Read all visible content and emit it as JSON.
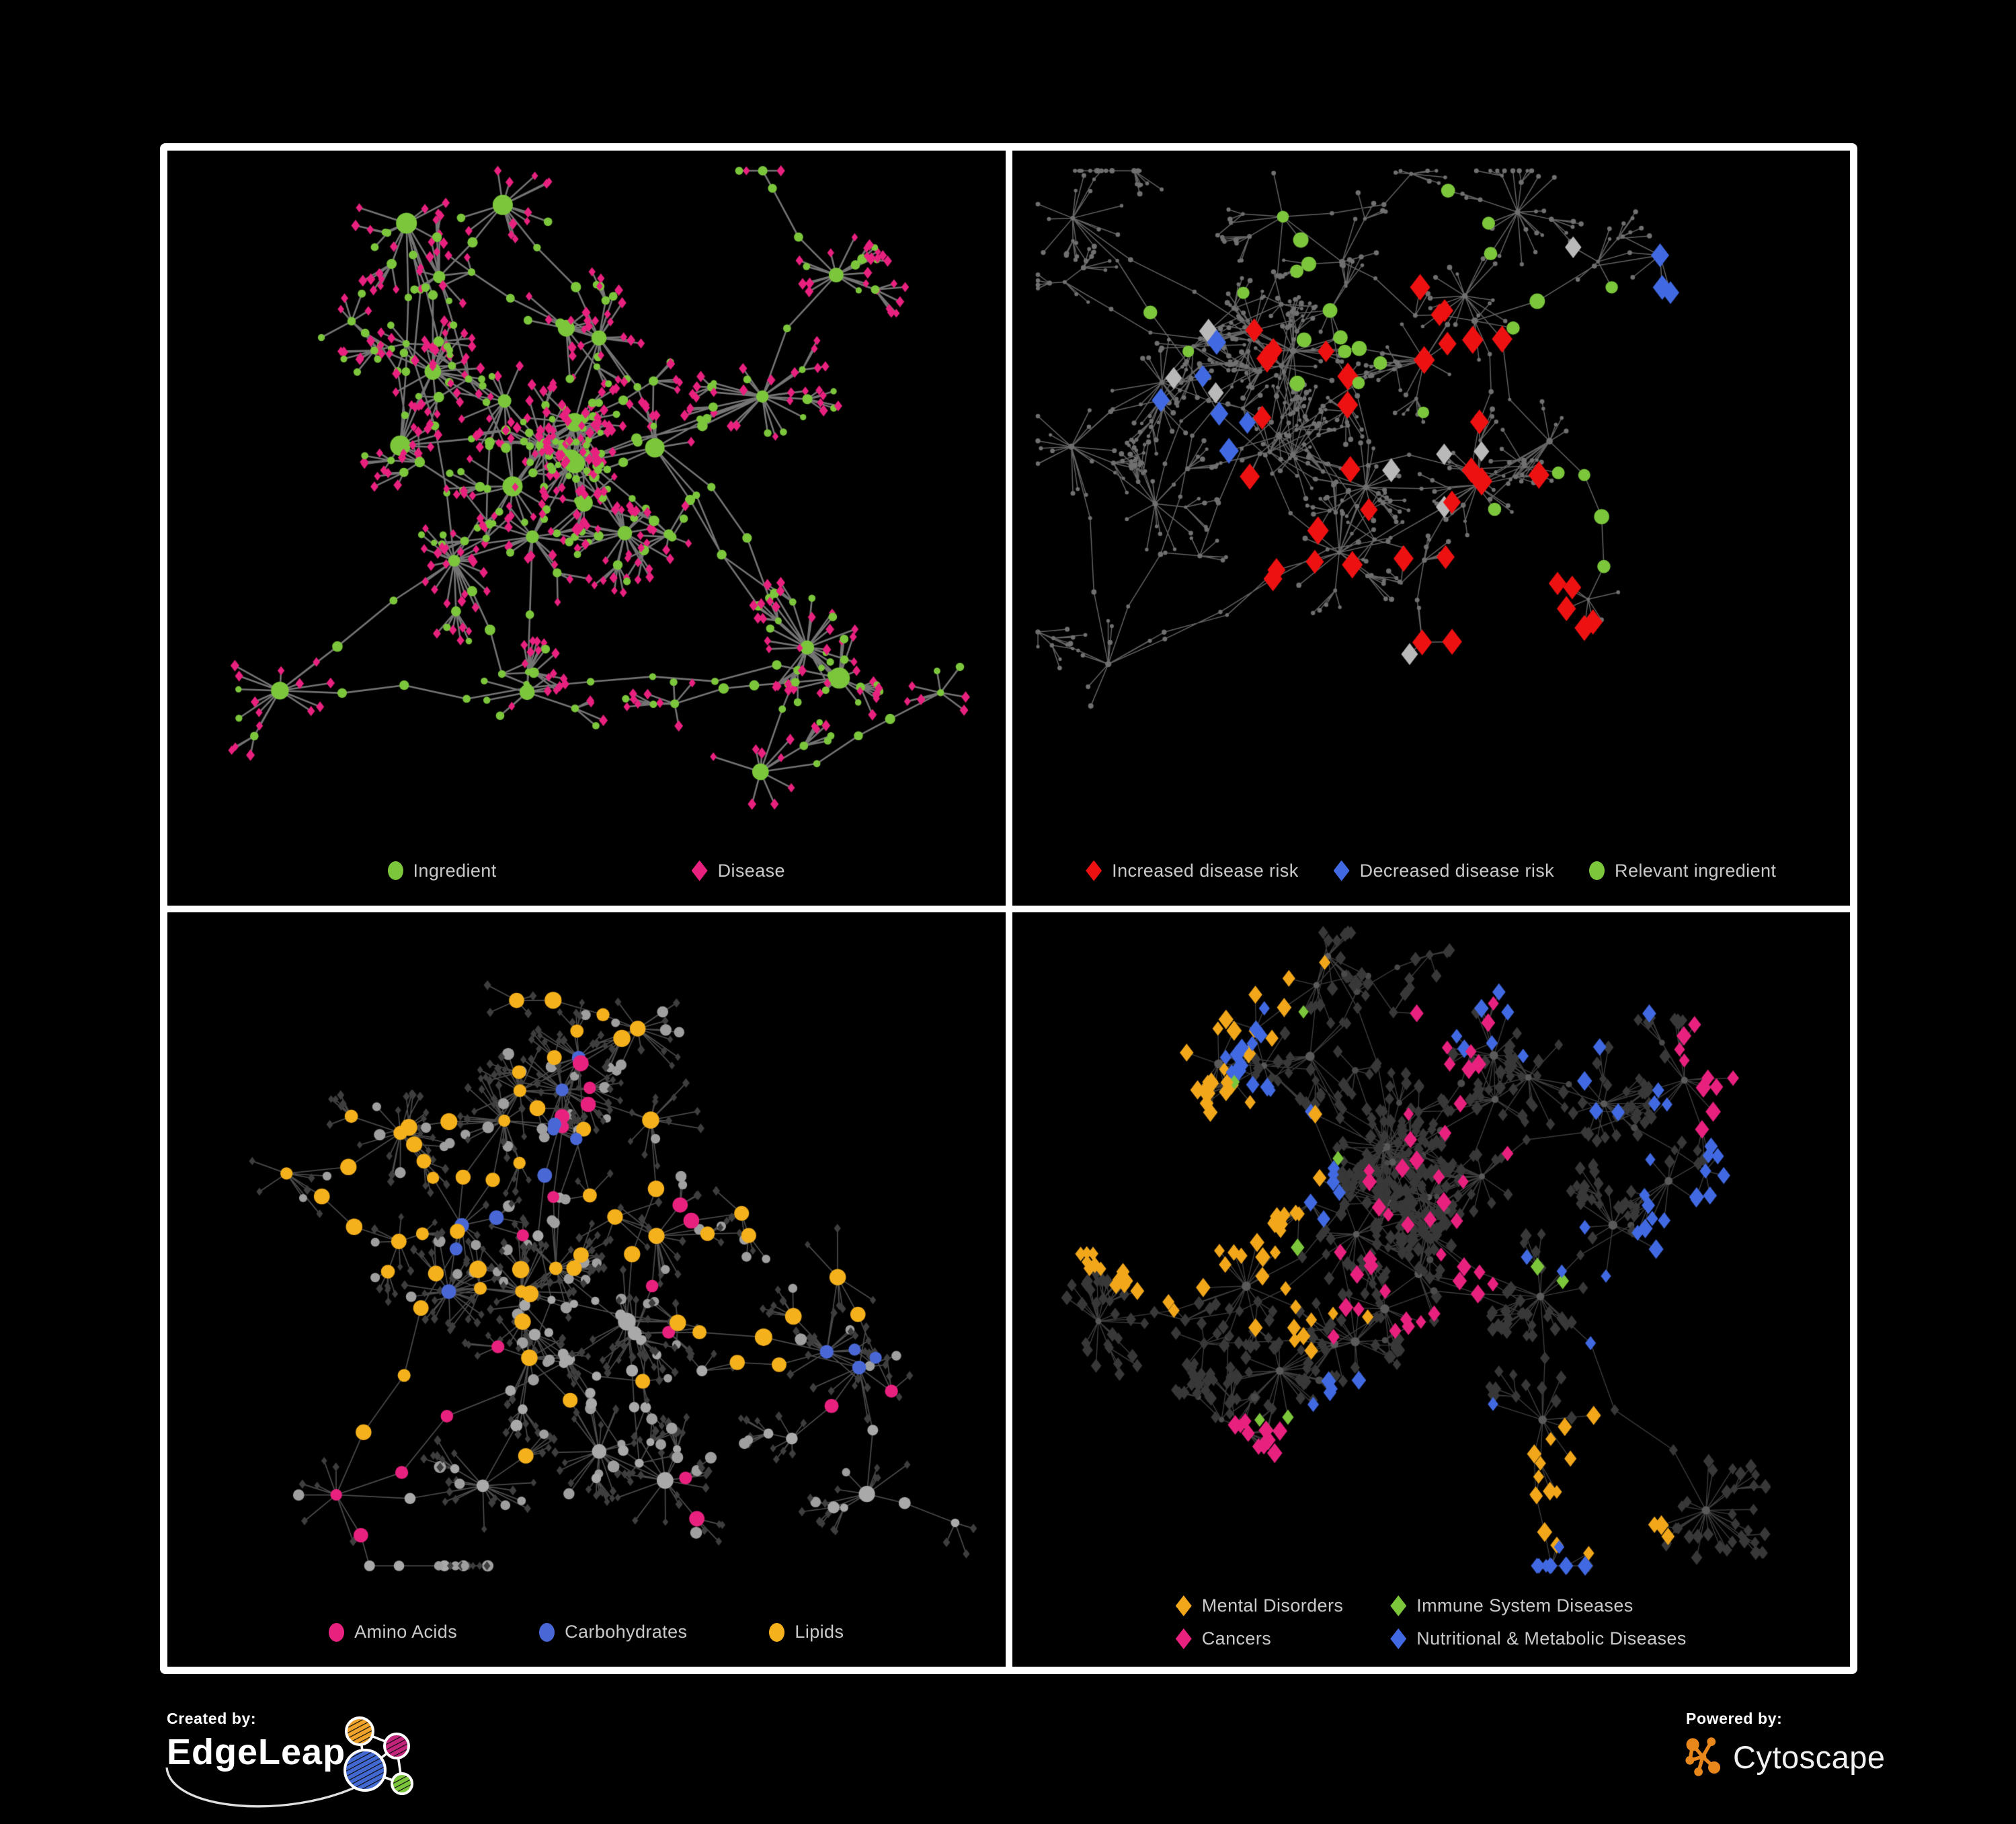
{
  "panels": [
    {
      "id": "ingredient-disease-overview",
      "legend": {
        "items": [
          {
            "label": "Ingredient",
            "shape": "circle",
            "color": "#7cc63c"
          },
          {
            "label": "Disease",
            "shape": "diamond",
            "color": "#e8217f"
          }
        ]
      },
      "network": {
        "seed": 11,
        "clusters": 25,
        "leaf_min": 5,
        "leaf_max": 23,
        "subhub_p": 0.12,
        "branch_p": 0.55,
        "extra_links": 8,
        "edge": {
          "color": "#7a7a7a",
          "width": 2.6,
          "alpha": 0.95
        },
        "base": {
          "hub": {
            "shape": "circle",
            "color": "#7cc63c",
            "size": [
              8,
              16
            ]
          },
          "conn": {
            "shape": "circle",
            "color": "#7cc63c",
            "size": [
              5,
              8
            ]
          },
          "leaf": {
            "shape": "diamond",
            "color": "#e8217f",
            "size": [
              5,
              7
            ],
            "alt": {
              "p": 0.22,
              "shape": "circle",
              "color": "#7cc63c",
              "size": [
                4.5,
                6.5
              ]
            }
          }
        },
        "highlights": []
      }
    },
    {
      "id": "disease-risk",
      "legend": {
        "items": [
          {
            "label": "Increased disease risk",
            "shape": "diamond",
            "color": "#ee1111"
          },
          {
            "label": "Decreased disease risk",
            "shape": "diamond",
            "color": "#4169e1"
          },
          {
            "label": "Relevant ingredient",
            "shape": "circle",
            "color": "#7cc63c"
          }
        ]
      },
      "network": {
        "seed": 22,
        "clusters": 24,
        "leaf_min": 4,
        "leaf_max": 18,
        "subhub_p": 0.15,
        "branch_p": 0.85,
        "extra_links": 9,
        "edge": {
          "color": "#848484",
          "width": 1.5,
          "alpha": 0.75
        },
        "base": {
          "hub": {
            "shape": "circle",
            "color": "#6f6f6f",
            "size": [
              3,
              5
            ]
          },
          "conn": {
            "shape": "circle",
            "color": "#6f6f6f",
            "size": [
              2.5,
              4
            ]
          },
          "leaf": {
            "shape": "circle",
            "color": "#707070",
            "size": [
              2.5,
              4
            ]
          }
        },
        "highlights": [
          {
            "shape": "diamond",
            "color": "#ee1111",
            "count": 36,
            "size": [
              13,
              17
            ],
            "eligible": "any",
            "foci": [
              [
                0.42,
                0.32,
                0.12
              ],
              [
                0.3,
                0.28,
                0.07
              ],
              [
                0.52,
                0.42,
                0.11
              ],
              [
                0.6,
                0.72,
                0.04
              ],
              [
                0.45,
                0.52,
                0.09
              ],
              [
                0.33,
                0.55,
                0.05
              ]
            ]
          },
          {
            "shape": "diamond",
            "color": "#4169e1",
            "count": 9,
            "size": [
              13,
              16
            ],
            "eligible": "any",
            "foci": [
              [
                0.2,
                0.3,
                0.05
              ],
              [
                0.23,
                0.4,
                0.04
              ],
              [
                0.88,
                0.11,
                0.03
              ]
            ]
          },
          {
            "shape": "diamond",
            "color": "#b9b9b9",
            "count": 9,
            "size": [
              12,
              15
            ],
            "eligible": "any",
            "foci": [
              [
                0.12,
                0.28,
                0.04
              ],
              [
                0.38,
                0.5,
                0.16
              ],
              [
                0.58,
                0.32,
                0.12
              ]
            ]
          },
          {
            "shape": "circle",
            "color": "#7cc63c",
            "count": 28,
            "size": [
              8.5,
              11.5
            ],
            "eligible": "any",
            "foci": [
              [
                0.4,
                0.33,
                0.11
              ],
              [
                0.3,
                0.24,
                0.09
              ],
              [
                0.55,
                0.4,
                0.11
              ],
              [
                0.15,
                0.2,
                0.09
              ],
              [
                0.75,
                0.55,
                0.09
              ],
              [
                0.5,
                0.18,
                0.08
              ]
            ]
          }
        ]
      }
    },
    {
      "id": "nutrient-classes",
      "legend": {
        "items": [
          {
            "label": "Amino Acids",
            "shape": "circle",
            "color": "#e8217f"
          },
          {
            "label": "Carbohydrates",
            "shape": "circle",
            "color": "#4968d6"
          },
          {
            "label": "Lipids",
            "shape": "circle",
            "color": "#f5b11c"
          }
        ]
      },
      "network": {
        "seed": 33,
        "clusters": 26,
        "leaf_min": 5,
        "leaf_max": 22,
        "subhub_p": 0.12,
        "branch_p": 0.6,
        "extra_links": 8,
        "edge": {
          "color": "#b2b2b2",
          "width": 1.7,
          "alpha": 0.42
        },
        "base": {
          "hub": {
            "shape": "circle",
            "color": "#a9a9a9",
            "size": [
              8,
              14
            ]
          },
          "conn": {
            "shape": "circle",
            "color": "#a9a9a9",
            "size": [
              6,
              9
            ]
          },
          "leaf": {
            "shape": "diamond",
            "color": "#3e3e3e",
            "size": [
              4.5,
              6
            ],
            "alt": {
              "p": 0.15,
              "shape": "circle",
              "color": "#9f9f9f",
              "size": [
                6,
                9
              ]
            }
          }
        },
        "highlights": [
          {
            "shape": "circle",
            "color": "#f5b11c",
            "count": 64,
            "size": [
              9,
              13
            ],
            "eligible": [
              "hub",
              "conn"
            ],
            "foci": [
              [
                0.32,
                0.25,
                0.07
              ],
              [
                0.27,
                0.33,
                0.06
              ],
              [
                0.45,
                0.52,
                0.05
              ],
              [
                0.23,
                0.12,
                0.06
              ],
              [
                0.6,
                0.3,
                0.1
              ],
              [
                0.76,
                0.6,
                0.08
              ],
              [
                0.5,
                0.76,
                0.07
              ],
              [
                0.08,
                0.58,
                0.04
              ]
            ]
          },
          {
            "shape": "circle",
            "color": "#4968d6",
            "count": 14,
            "size": [
              8.5,
              11
            ],
            "eligible": [
              "hub",
              "conn"
            ],
            "foci": [
              [
                0.4,
                0.2,
                0.05
              ],
              [
                0.43,
                0.28,
                0.04
              ],
              [
                0.84,
                0.66,
                0.03
              ],
              [
                0.05,
                0.25,
                0.03
              ]
            ]
          },
          {
            "shape": "circle",
            "color": "#e8217f",
            "count": 20,
            "size": [
              8.5,
              12
            ],
            "eligible": [
              "hub",
              "conn"
            ],
            "foci": [
              [
                0.12,
                0.5,
                0.13
              ],
              [
                0.4,
                0.85,
                0.12
              ],
              [
                0.76,
                0.45,
                0.13
              ],
              [
                0.35,
                0.12,
                0.09
              ],
              [
                0.95,
                0.22,
                0.03
              ],
              [
                0.65,
                0.92,
                0.05
              ]
            ]
          }
        ]
      }
    },
    {
      "id": "disease-categories",
      "legend": {
        "items": [
          {
            "label": "Mental Disorders",
            "shape": "diamond",
            "color": "#f2a71b"
          },
          {
            "label": "Immune System Diseases",
            "shape": "diamond",
            "color": "#7cc63c"
          },
          {
            "label": "Cancers",
            "shape": "diamond",
            "color": "#e8217f"
          },
          {
            "label": "Nutritional & Metabolic Diseases",
            "shape": "diamond",
            "color": "#4169e1"
          }
        ]
      },
      "network": {
        "seed": 44,
        "clusters": 30,
        "leaf_min": 6,
        "leaf_max": 25,
        "subhub_p": 0.14,
        "branch_p": 0.6,
        "extra_links": 9,
        "edge": {
          "color": "#a0a0a0",
          "width": 1.4,
          "alpha": 0.38
        },
        "base": {
          "hub": {
            "shape": "circle",
            "color": "#5a5a5a",
            "size": [
              4.5,
              7
            ]
          },
          "conn": {
            "shape": "diamond",
            "color": "#383838",
            "size": [
              6,
              8
            ],
            "alt": {
              "p": 0.3,
              "shape": "circle",
              "color": "#4a4a4a",
              "size": [
                4,
                6
              ]
            }
          },
          "leaf": {
            "shape": "diamond",
            "color": "#383838",
            "size": [
              6.5,
              9
            ]
          }
        },
        "highlights": [
          {
            "shape": "diamond",
            "color": "#f2a71b",
            "count": 88,
            "size": [
              8,
              12
            ],
            "eligible": [
              "leaf",
              "conn"
            ],
            "foci": [
              [
                0.15,
                0.4,
                0.06
              ],
              [
                0.2,
                0.48,
                0.05
              ],
              [
                0.12,
                0.31,
                0.05
              ],
              [
                0.3,
                0.1,
                0.05
              ],
              [
                0.68,
                0.87,
                0.03
              ],
              [
                0.32,
                0.6,
                0.04
              ],
              [
                0.22,
                0.38,
                0.05
              ]
            ]
          },
          {
            "shape": "diamond",
            "color": "#e8217f",
            "count": 66,
            "size": [
              8,
              12
            ],
            "eligible": [
              "leaf",
              "conn"
            ],
            "foci": [
              [
                0.45,
                0.45,
                0.09
              ],
              [
                0.52,
                0.52,
                0.06
              ],
              [
                0.4,
                0.56,
                0.05
              ],
              [
                0.92,
                0.22,
                0.04
              ],
              [
                0.25,
                0.9,
                0.04
              ],
              [
                0.55,
                0.18,
                0.04
              ],
              [
                0.48,
                0.36,
                0.05
              ]
            ]
          },
          {
            "shape": "diamond",
            "color": "#4169e1",
            "count": 72,
            "size": [
              8,
              12
            ],
            "eligible": [
              "leaf",
              "conn"
            ],
            "foci": [
              [
                0.68,
                0.55,
                0.06
              ],
              [
                0.78,
                0.25,
                0.06
              ],
              [
                0.62,
                0.12,
                0.05
              ],
              [
                0.4,
                0.75,
                0.06
              ],
              [
                0.3,
                0.35,
                0.04
              ],
              [
                0.85,
                0.4,
                0.05
              ],
              [
                0.55,
                0.92,
                0.04
              ],
              [
                0.12,
                0.1,
                0.04
              ],
              [
                0.9,
                0.55,
                0.04
              ]
            ]
          },
          {
            "shape": "diamond",
            "color": "#7cc63c",
            "count": 9,
            "size": [
              8,
              11
            ],
            "eligible": [
              "leaf",
              "conn"
            ],
            "foci": [
              [
                0.45,
                0.3,
                0.16
              ],
              [
                0.6,
                0.5,
                0.12
              ],
              [
                0.3,
                0.88,
                0.04
              ]
            ]
          }
        ]
      }
    }
  ],
  "footer": {
    "created_by_label": "Created by:",
    "created_by_name": "EdgeLeap",
    "powered_by_label": "Powered by:",
    "powered_by_name": "Cytoscape",
    "edgeleap_logo_colors": {
      "orange": "#f0a32a",
      "magenta": "#c2247c",
      "blue": "#4169d1",
      "green": "#7cc63c"
    },
    "cytoscape_logo_color": "#e8871b"
  }
}
